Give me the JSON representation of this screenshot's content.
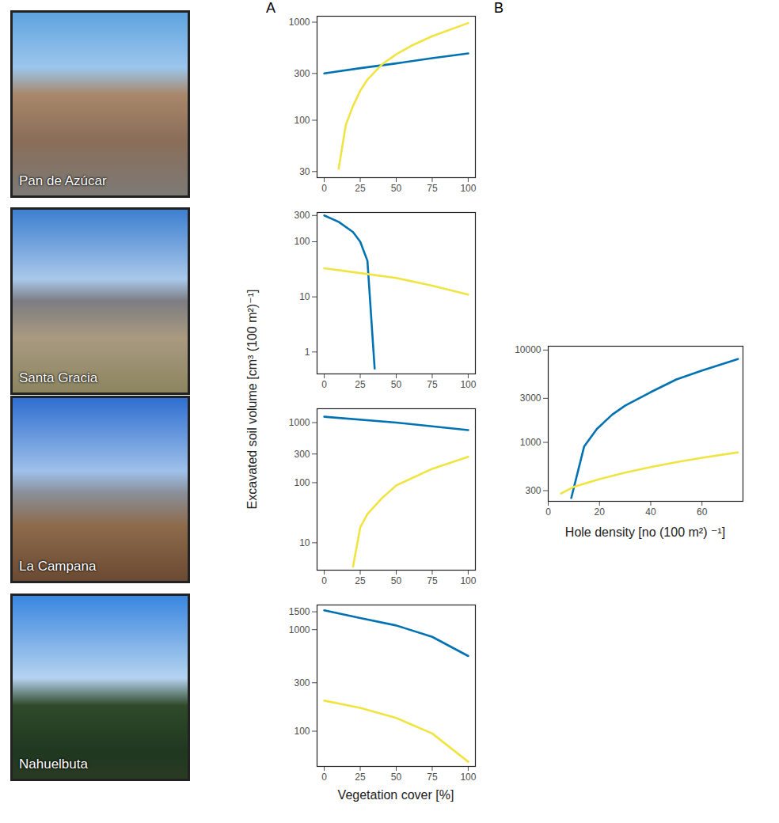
{
  "chart_data": [
    {
      "type": "line",
      "title": "Pan de Azúcar",
      "panel": "A",
      "ylabel": "Excavated soil volume [cm³ (100 m²)⁻¹]",
      "log": "y",
      "grid": false,
      "xlim": [
        -5,
        105
      ],
      "xticks": [
        0,
        25,
        50,
        75,
        100
      ],
      "ylim": [
        26,
        1150
      ],
      "yticks": [
        30,
        100,
        300,
        1000
      ],
      "series": [
        {
          "color": "#0072B2",
          "x": [
            0,
            25,
            50,
            75,
            100
          ],
          "values": [
            300,
            340,
            380,
            430,
            480
          ]
        },
        {
          "color": "#F0E442",
          "x": [
            10,
            15,
            20,
            25,
            30,
            40,
            50,
            60,
            75,
            100
          ],
          "values": [
            32,
            90,
            140,
            200,
            260,
            370,
            470,
            570,
            720,
            980
          ]
        }
      ]
    },
    {
      "type": "line",
      "title": "Santa Gracia",
      "log": "y",
      "grid": false,
      "xlim": [
        -5,
        105
      ],
      "xticks": [
        0,
        25,
        50,
        75,
        100
      ],
      "ylim": [
        0.4,
        340
      ],
      "yticks": [
        1,
        10,
        100,
        300
      ],
      "series": [
        {
          "color": "#0072B2",
          "x": [
            0,
            10,
            20,
            25,
            30,
            35
          ],
          "values": [
            300,
            230,
            150,
            100,
            45,
            0.5
          ]
        },
        {
          "color": "#F0E442",
          "x": [
            0,
            25,
            50,
            75,
            100
          ],
          "values": [
            33,
            27,
            22,
            16,
            11
          ]
        }
      ]
    },
    {
      "type": "line",
      "title": "La Campana",
      "log": "y",
      "grid": false,
      "xlim": [
        -5,
        105
      ],
      "xticks": [
        0,
        25,
        50,
        75,
        100
      ],
      "ylim": [
        3.5,
        1700
      ],
      "yticks": [
        10,
        100,
        300,
        1000
      ],
      "series": [
        {
          "color": "#0072B2",
          "x": [
            0,
            50,
            100
          ],
          "values": [
            1250,
            1000,
            750
          ]
        },
        {
          "color": "#F0E442",
          "x": [
            20,
            25,
            30,
            40,
            50,
            75,
            100
          ],
          "values": [
            4,
            18,
            30,
            55,
            90,
            170,
            270
          ]
        }
      ]
    },
    {
      "type": "line",
      "title": "Nahuelbuta",
      "xlabel": "Vegetation cover [%]",
      "log": "y",
      "grid": false,
      "xlim": [
        -5,
        105
      ],
      "xticks": [
        0,
        25,
        50,
        75,
        100
      ],
      "ylim": [
        45,
        1750
      ],
      "yticks": [
        100,
        300,
        1000,
        1500
      ],
      "series": [
        {
          "color": "#0072B2",
          "x": [
            0,
            25,
            50,
            75,
            100
          ],
          "values": [
            1550,
            1300,
            1100,
            850,
            550
          ]
        },
        {
          "color": "#F0E442",
          "x": [
            0,
            25,
            50,
            75,
            100
          ],
          "values": [
            200,
            170,
            135,
            95,
            50
          ]
        }
      ]
    },
    {
      "type": "line",
      "panel": "B",
      "xlabel": "Hole density [no (100 m²) ⁻¹]",
      "log": "y",
      "grid": false,
      "xlim": [
        0,
        76
      ],
      "xticks": [
        0,
        20,
        40,
        60
      ],
      "ylim": [
        230,
        11000
      ],
      "yticks": [
        300,
        1000,
        3000,
        10000
      ],
      "series": [
        {
          "color": "#0072B2",
          "x": [
            9,
            14,
            19,
            25,
            30,
            40,
            50,
            60,
            74
          ],
          "values": [
            250,
            900,
            1400,
            2000,
            2500,
            3500,
            4800,
            6000,
            8000
          ]
        },
        {
          "color": "#F0E442",
          "x": [
            5,
            10,
            20,
            30,
            40,
            50,
            60,
            74
          ],
          "values": [
            280,
            330,
            400,
            470,
            540,
            610,
            680,
            780
          ]
        }
      ]
    }
  ]
}
